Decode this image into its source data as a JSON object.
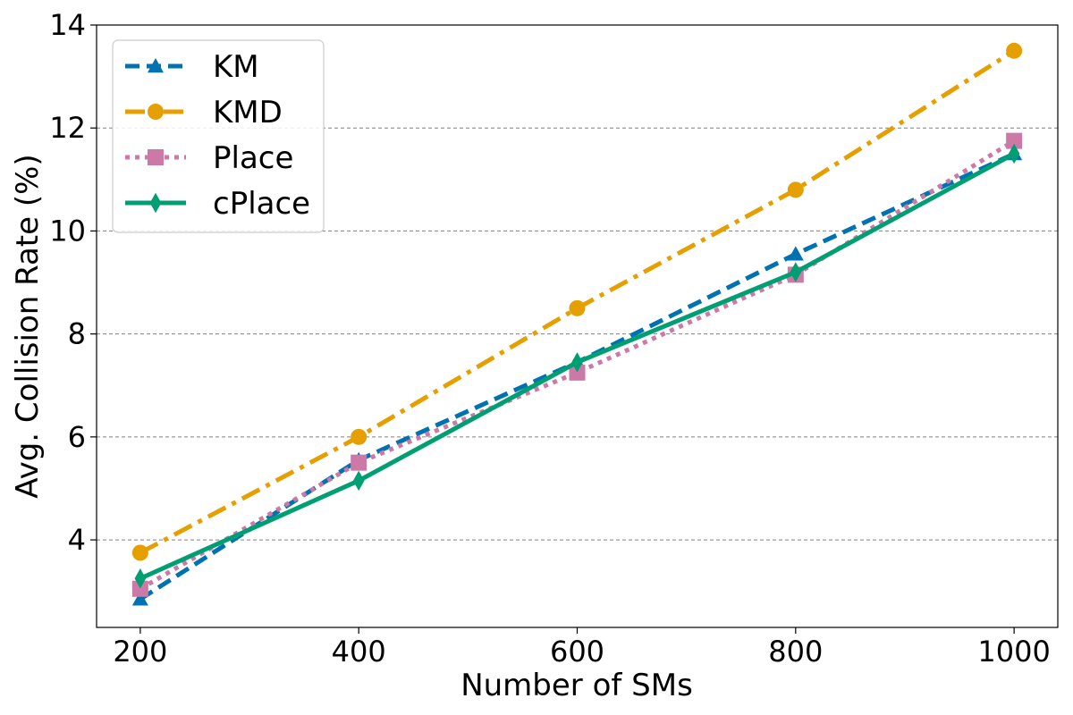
{
  "chart_data": {
    "type": "line",
    "title": "",
    "xlabel": "Number of SMs",
    "ylabel": "Avg. Collision Rate (%)",
    "x": [
      200,
      400,
      600,
      800,
      1000
    ],
    "xticks": [
      "200",
      "400",
      "600",
      "800",
      "1000"
    ],
    "xlim": [
      160,
      1040
    ],
    "yticks": [
      "4",
      "6",
      "8",
      "10",
      "12",
      "14"
    ],
    "ylim": [
      2.3,
      14
    ],
    "grid": "horizontal dashed",
    "legend_position": "top-left",
    "series": [
      {
        "name": "KM",
        "values": [
          2.85,
          5.55,
          7.45,
          9.55,
          11.5
        ],
        "color": "#0072b2",
        "marker": "triangle",
        "line_style": "dashed"
      },
      {
        "name": "KMD",
        "values": [
          3.75,
          6.0,
          8.5,
          10.8,
          13.5
        ],
        "color": "#e69f00",
        "marker": "circle",
        "line_style": "dash-dot"
      },
      {
        "name": "Place",
        "values": [
          3.05,
          5.5,
          7.25,
          9.15,
          11.75
        ],
        "color": "#cc79a7",
        "marker": "square",
        "line_style": "dotted"
      },
      {
        "name": "cPlace",
        "values": [
          3.25,
          5.15,
          7.45,
          9.2,
          11.5
        ],
        "color": "#009e73",
        "marker": "diamond",
        "line_style": "solid"
      }
    ]
  }
}
